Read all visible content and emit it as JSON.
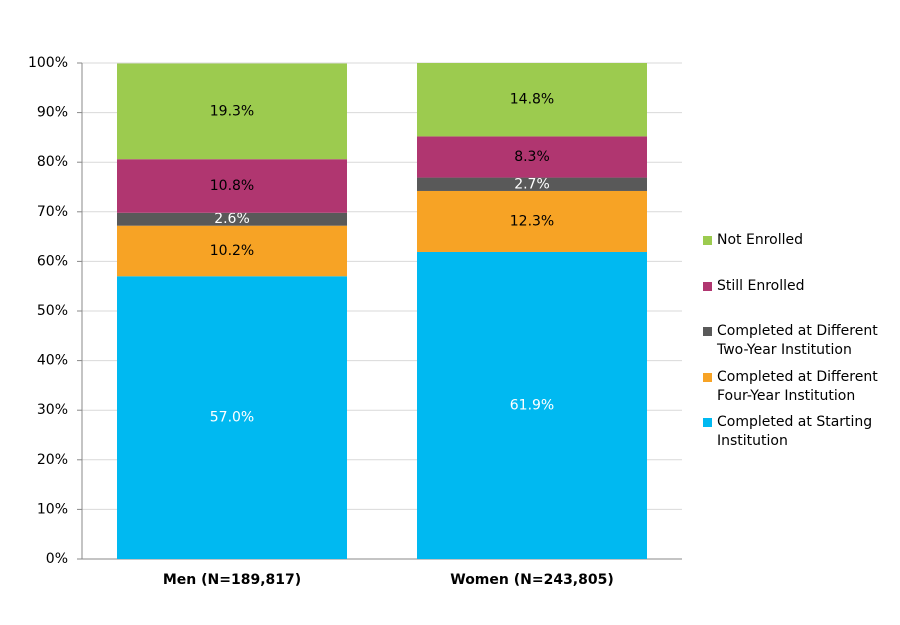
{
  "chart_data": {
    "type": "stacked-bar",
    "categories": [
      "Men (N=189,817)",
      "Women (N=243,805)"
    ],
    "series": [
      {
        "name": "Completed at Starting Institution",
        "color": "#00b9f1",
        "label_color": "#ffffff",
        "values": [
          57.0,
          61.9
        ],
        "value_labels": [
          "57.0%",
          "61.9%"
        ]
      },
      {
        "name": "Completed at Different Four-Year Institution",
        "color": "#f7a325",
        "label_color": "#000000",
        "values": [
          10.2,
          12.3
        ],
        "value_labels": [
          "10.2%",
          "12.3%"
        ]
      },
      {
        "name": "Completed at Different Two-Year Institution",
        "color": "#595959",
        "label_color": "#ffffff",
        "values": [
          2.6,
          2.7
        ],
        "value_labels": [
          "2.6%",
          "2.7%"
        ]
      },
      {
        "name": "Still Enrolled",
        "color": "#b03670",
        "label_color": "#000000",
        "values": [
          10.8,
          8.3
        ],
        "value_labels": [
          "10.8%",
          "8.3%"
        ]
      },
      {
        "name": "Not Enrolled",
        "color": "#9ccb4f",
        "label_color": "#000000",
        "values": [
          19.3,
          14.8
        ],
        "value_labels": [
          "19.3%",
          "14.8%"
        ]
      }
    ],
    "ylim": [
      0,
      100
    ],
    "yticks": [
      {
        "value": 0,
        "label": "0%"
      },
      {
        "value": 10,
        "label": "10%"
      },
      {
        "value": 20,
        "label": "20%"
      },
      {
        "value": 30,
        "label": "30%"
      },
      {
        "value": 40,
        "label": "40%"
      },
      {
        "value": 50,
        "label": "50%"
      },
      {
        "value": 60,
        "label": "60%"
      },
      {
        "value": 70,
        "label": "70%"
      },
      {
        "value": 80,
        "label": "80%"
      },
      {
        "value": 90,
        "label": "90%"
      },
      {
        "value": 100,
        "label": "100%"
      }
    ],
    "grid": true,
    "legend": "right"
  }
}
